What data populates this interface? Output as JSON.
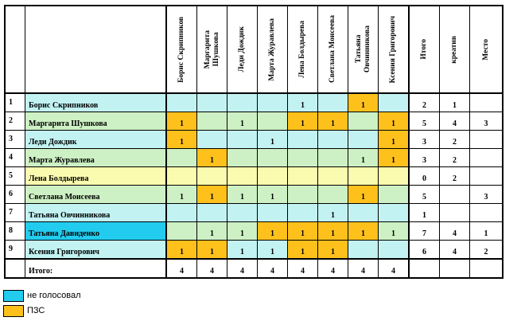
{
  "header": {
    "columns": [
      "Борис Скрипников",
      "Маргарита\nШушкова",
      "Леди Дождик",
      "Марта Журавлева",
      "Лена Болдырева",
      "Светлана Моисеева",
      "Татьяна\nОвчинникова",
      "Ксения Григорович"
    ],
    "total": "Итого",
    "creative": "креатив",
    "place": "Место"
  },
  "rows": [
    {
      "num": "1",
      "name": "Борис Скрипников",
      "nameColor": "cyan",
      "rowColor": "cyan",
      "cells": [
        {
          "v": "",
          "c": "cyan"
        },
        {
          "v": "",
          "c": "cyan"
        },
        {
          "v": "",
          "c": "cyan"
        },
        {
          "v": "",
          "c": "cyan"
        },
        {
          "v": "1",
          "c": "cyan"
        },
        {
          "v": "",
          "c": "cyan"
        },
        {
          "v": "1",
          "c": "orange"
        },
        {
          "v": "",
          "c": "cyan"
        }
      ],
      "total": "2",
      "creative": "1",
      "place": ""
    },
    {
      "num": "2",
      "name": "Маргарита Шушкова",
      "nameColor": "green",
      "rowColor": "green",
      "cells": [
        {
          "v": "1",
          "c": "orange"
        },
        {
          "v": "",
          "c": "green"
        },
        {
          "v": "1",
          "c": "green"
        },
        {
          "v": "",
          "c": "green"
        },
        {
          "v": "1",
          "c": "orange"
        },
        {
          "v": "1",
          "c": "orange"
        },
        {
          "v": "",
          "c": "green"
        },
        {
          "v": "1",
          "c": "orange"
        }
      ],
      "total": "5",
      "creative": "4",
      "place": "3"
    },
    {
      "num": "3",
      "name": "Леди Дождик",
      "nameColor": "cyan",
      "rowColor": "cyan",
      "cells": [
        {
          "v": "1",
          "c": "orange"
        },
        {
          "v": "",
          "c": "cyan"
        },
        {
          "v": "",
          "c": "cyan"
        },
        {
          "v": "1",
          "c": "cyan"
        },
        {
          "v": "",
          "c": "cyan"
        },
        {
          "v": "",
          "c": "cyan"
        },
        {
          "v": "",
          "c": "cyan"
        },
        {
          "v": "1",
          "c": "orange"
        }
      ],
      "total": "3",
      "creative": "2",
      "place": ""
    },
    {
      "num": "4",
      "name": "Марта Журавлева",
      "nameColor": "green",
      "rowColor": "green",
      "cells": [
        {
          "v": "",
          "c": "green"
        },
        {
          "v": "1",
          "c": "orange"
        },
        {
          "v": "",
          "c": "green"
        },
        {
          "v": "",
          "c": "green"
        },
        {
          "v": "",
          "c": "green"
        },
        {
          "v": "",
          "c": "green"
        },
        {
          "v": "1",
          "c": "green"
        },
        {
          "v": "1",
          "c": "orange"
        }
      ],
      "total": "3",
      "creative": "2",
      "place": ""
    },
    {
      "num": "5",
      "name": "Лена Болдырева",
      "nameColor": "yellow",
      "rowColor": "yellow",
      "cells": [
        {
          "v": "",
          "c": "yellow"
        },
        {
          "v": "",
          "c": "yellow"
        },
        {
          "v": "",
          "c": "yellow"
        },
        {
          "v": "",
          "c": "yellow"
        },
        {
          "v": "",
          "c": "yellow"
        },
        {
          "v": "",
          "c": "yellow"
        },
        {
          "v": "",
          "c": "yellow"
        },
        {
          "v": "",
          "c": "yellow"
        }
      ],
      "total": "0",
      "creative": "2",
      "place": ""
    },
    {
      "num": "6",
      "name": "Светлана Моисеева",
      "nameColor": "green",
      "rowColor": "green",
      "cells": [
        {
          "v": "1",
          "c": "green"
        },
        {
          "v": "1",
          "c": "orange"
        },
        {
          "v": "1",
          "c": "green"
        },
        {
          "v": "1",
          "c": "green"
        },
        {
          "v": "",
          "c": "green"
        },
        {
          "v": "",
          "c": "green"
        },
        {
          "v": "1",
          "c": "orange"
        },
        {
          "v": "",
          "c": "green"
        }
      ],
      "total": "5",
      "creative": "",
      "place": "3"
    },
    {
      "num": "7",
      "name": "Татьяна Овчинникова",
      "nameColor": "cyan",
      "rowColor": "cyan",
      "cells": [
        {
          "v": "",
          "c": "cyan"
        },
        {
          "v": "",
          "c": "cyan"
        },
        {
          "v": "",
          "c": "cyan"
        },
        {
          "v": "",
          "c": "cyan"
        },
        {
          "v": "",
          "c": "cyan"
        },
        {
          "v": "1",
          "c": "cyan"
        },
        {
          "v": "",
          "c": "cyan"
        },
        {
          "v": "",
          "c": "cyan"
        }
      ],
      "total": "1",
      "creative": "",
      "place": ""
    },
    {
      "num": "8",
      "name": "Татьяна Давиденко",
      "nameColor": "blue",
      "rowColor": "green",
      "cells": [
        {
          "v": "",
          "c": "green"
        },
        {
          "v": "1",
          "c": "green"
        },
        {
          "v": "1",
          "c": "green"
        },
        {
          "v": "1",
          "c": "orange"
        },
        {
          "v": "1",
          "c": "orange"
        },
        {
          "v": "1",
          "c": "orange"
        },
        {
          "v": "1",
          "c": "orange"
        },
        {
          "v": "1",
          "c": "green"
        }
      ],
      "total": "7",
      "creative": "4",
      "place": "1"
    },
    {
      "num": "9",
      "name": "Ксения Григорович",
      "nameColor": "cyan",
      "rowColor": "cyan",
      "cells": [
        {
          "v": "1",
          "c": "orange"
        },
        {
          "v": "1",
          "c": "orange"
        },
        {
          "v": "1",
          "c": "cyan"
        },
        {
          "v": "1",
          "c": "cyan"
        },
        {
          "v": "1",
          "c": "orange"
        },
        {
          "v": "1",
          "c": "orange"
        },
        {
          "v": "",
          "c": "cyan"
        },
        {
          "v": "",
          "c": "cyan"
        }
      ],
      "total": "6",
      "creative": "4",
      "place": "2"
    }
  ],
  "footer": {
    "label": "Итого:",
    "values": [
      "4",
      "4",
      "4",
      "4",
      "4",
      "4",
      "4",
      "4"
    ]
  },
  "legend": [
    {
      "color": "blue",
      "label": "не голосовал"
    },
    {
      "color": "orange",
      "label": "ПЗС"
    }
  ]
}
